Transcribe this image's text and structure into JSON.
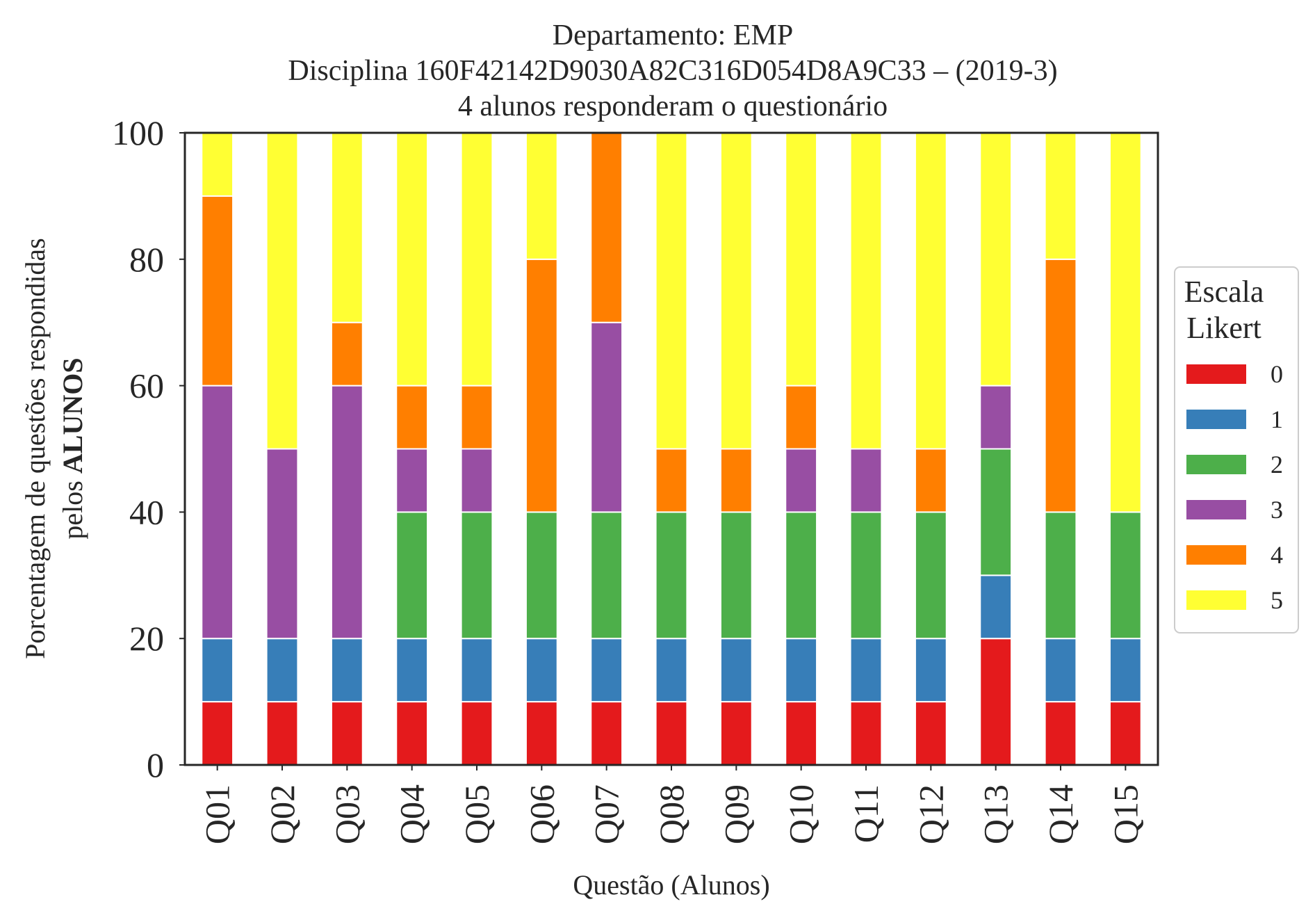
{
  "chart_data": {
    "type": "bar",
    "stacked": true,
    "title": [
      "Departamento: EMP",
      "Disciplina 160F42142D9030A82C316D054D8A9C33 – (2019-3)",
      "4 alunos responderam o questionário"
    ],
    "xlabel": "Questão (Alunos)",
    "ylabel": {
      "line1": "Porcentagem de questões respondidas",
      "line2_prefix": "pelos ",
      "line2_bold": "ALUNOS"
    },
    "ylim": [
      0,
      100
    ],
    "yticks": [
      0,
      20,
      40,
      60,
      80,
      100
    ],
    "grid": false,
    "legend": {
      "title": [
        "Escala",
        "Likert"
      ],
      "placement": "right"
    },
    "categories": [
      "Q01",
      "Q02",
      "Q03",
      "Q04",
      "Q05",
      "Q06",
      "Q07",
      "Q08",
      "Q09",
      "Q10",
      "Q11",
      "Q12",
      "Q13",
      "Q14",
      "Q15"
    ],
    "series": [
      {
        "name": "0",
        "color": "#e41a1c",
        "values": [
          10,
          10,
          10,
          10,
          10,
          10,
          10,
          10,
          10,
          10,
          10,
          10,
          20,
          10,
          10
        ]
      },
      {
        "name": "1",
        "color": "#377eb8",
        "values": [
          10,
          10,
          10,
          10,
          10,
          10,
          10,
          10,
          10,
          10,
          10,
          10,
          10,
          10,
          10
        ]
      },
      {
        "name": "2",
        "color": "#4daf4a",
        "values": [
          0,
          0,
          0,
          20,
          20,
          20,
          20,
          20,
          20,
          20,
          20,
          20,
          20,
          20,
          20
        ]
      },
      {
        "name": "3",
        "color": "#984ea3",
        "values": [
          40,
          30,
          40,
          10,
          10,
          0,
          30,
          0,
          0,
          10,
          10,
          0,
          10,
          0,
          0
        ]
      },
      {
        "name": "4",
        "color": "#ff7f00",
        "values": [
          30,
          0,
          10,
          10,
          10,
          40,
          30,
          10,
          10,
          10,
          0,
          10,
          0,
          40,
          0
        ]
      },
      {
        "name": "5",
        "color": "#ffff33",
        "values": [
          10,
          50,
          30,
          40,
          40,
          20,
          0,
          50,
          50,
          40,
          50,
          50,
          40,
          20,
          60
        ]
      }
    ]
  }
}
